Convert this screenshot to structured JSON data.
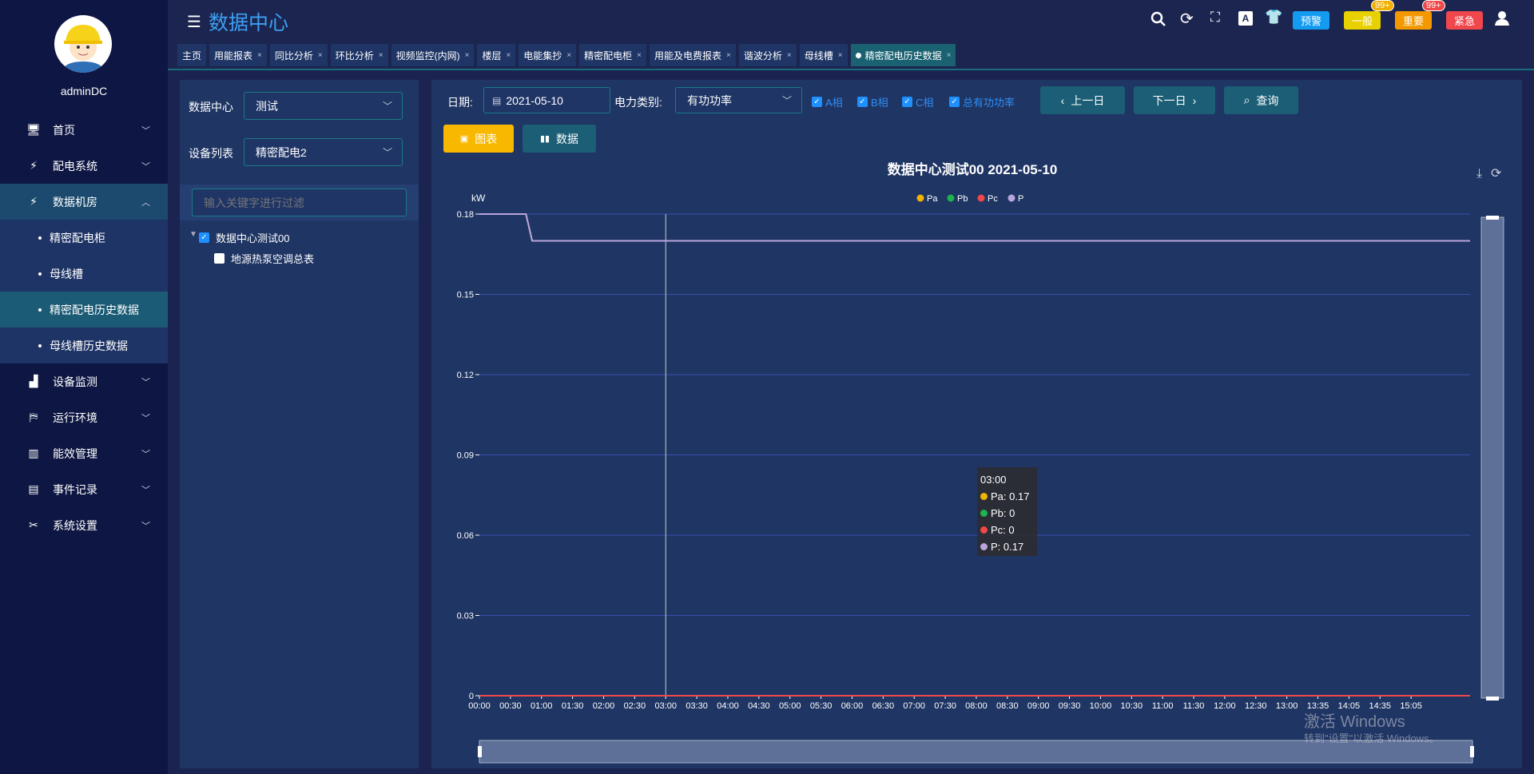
{
  "sidebar": {
    "username": "adminDC",
    "items": [
      {
        "label": "首页",
        "icon": "monitor-icon",
        "chev": "﹀"
      },
      {
        "label": "配电系统",
        "icon": "power-icon",
        "chev": "﹀"
      },
      {
        "label": "数据机房",
        "icon": "power-icon",
        "chev": "︿"
      },
      {
        "label": "设备监测",
        "icon": "bar-chart-icon",
        "chev": "﹀"
      },
      {
        "label": "运行环境",
        "icon": "environment-icon",
        "chev": "﹀"
      },
      {
        "label": "能效管理",
        "icon": "factory-icon",
        "chev": "﹀"
      },
      {
        "label": "事件记录",
        "icon": "log-icon",
        "chev": "﹀"
      },
      {
        "label": "系统设置",
        "icon": "tools-icon",
        "chev": "﹀"
      }
    ],
    "subitems": [
      "精密配电柜",
      "母线槽",
      "精密配电历史数据",
      "母线槽历史数据"
    ],
    "active_sub": "精密配电历史数据"
  },
  "header": {
    "title": "数据中心",
    "buttons": {
      "warn": "预警",
      "normal": "一般",
      "important": "重要",
      "urgent": "紧急"
    },
    "badges": {
      "normal": "99+",
      "important": "99+"
    },
    "tabs": [
      "主页",
      "用能报表",
      "同比分析",
      "环比分析",
      "视频监控(内网)",
      "楼层",
      "电能集抄",
      "精密配电柜",
      "用能及电费报表",
      "谐波分析",
      "母线槽",
      "精密配电历史数据"
    ],
    "active_tab": "精密配电历史数据"
  },
  "left": {
    "dc_label": "数据中心",
    "dc_value": "测试",
    "dev_label": "设备列表",
    "dev_value": "精密配电2",
    "filter_placeholder": "输入关键字进行过滤",
    "tree": [
      {
        "label": "数据中心测试00",
        "checked": true
      },
      {
        "label": "地源热泵空调总表",
        "checked": false
      }
    ]
  },
  "filters": {
    "date_label": "日期:",
    "date": "2021-05-10",
    "type_label": "电力类别:",
    "type": "有功功率",
    "checks": [
      {
        "label": "A相",
        "checked": true
      },
      {
        "label": "B相",
        "checked": true
      },
      {
        "label": "C相",
        "checked": true
      },
      {
        "label": "总有功功率",
        "checked": true
      }
    ],
    "prev": "上一日",
    "next": "下一日",
    "query": "查询",
    "chart_btn": "图表",
    "data_btn": "数据"
  },
  "tooltip": {
    "time": "03:00",
    "rows": [
      "Pa: 0.17",
      "Pb: 0",
      "Pc: 0",
      "P: 0.17"
    ]
  },
  "watermark": {
    "line1": "激活 Windows",
    "line2": "转到\"设置\"以激活 Windows。"
  },
  "chart_data": {
    "type": "line",
    "title": "数据中心测试00  2021-05-10",
    "ylabel": "kW",
    "ylim": [
      0,
      0.18
    ],
    "yticks": [
      0,
      0.03,
      0.06,
      0.09,
      0.12,
      0.15,
      0.18
    ],
    "grid": true,
    "legend_position": "top-center",
    "x": [
      "00:00",
      "00:30",
      "01:00",
      "01:30",
      "02:00",
      "02:30",
      "03:00",
      "03:30",
      "04:00",
      "04:30",
      "05:00",
      "05:30",
      "06:00",
      "06:30",
      "07:00",
      "07:30",
      "08:00",
      "08:30",
      "09:00",
      "09:30",
      "10:00",
      "10:30",
      "11:00",
      "11:30",
      "12:00",
      "12:30",
      "13:00",
      "13:35",
      "14:05",
      "14:35",
      "15:05"
    ],
    "series": [
      {
        "name": "Pa",
        "color": "#f0b400",
        "values": [
          0.18,
          0.18,
          0.17,
          0.17,
          0.17,
          0.17,
          0.17,
          0.17,
          0.17,
          0.17,
          0.17,
          0.17,
          0.17,
          0.17,
          0.17,
          0.17,
          0.17,
          0.17,
          0.17,
          0.17,
          0.17,
          0.17,
          0.17,
          0.17,
          0.17,
          0.17,
          0.17,
          0.17,
          0.17,
          0.17,
          0.17
        ]
      },
      {
        "name": "Pb",
        "color": "#1db34f",
        "values": [
          0,
          0,
          0,
          0,
          0,
          0,
          0,
          0,
          0,
          0,
          0,
          0,
          0,
          0,
          0,
          0,
          0,
          0,
          0,
          0,
          0,
          0,
          0,
          0,
          0,
          0,
          0,
          0,
          0,
          0,
          0
        ]
      },
      {
        "name": "Pc",
        "color": "#f04848",
        "values": [
          0,
          0,
          0,
          0,
          0,
          0,
          0,
          0,
          0,
          0,
          0,
          0,
          0,
          0,
          0,
          0,
          0,
          0,
          0,
          0,
          0,
          0,
          0,
          0,
          0,
          0,
          0,
          0,
          0,
          0,
          0
        ]
      },
      {
        "name": "P",
        "color": "#b9a5dc",
        "values": [
          0.18,
          0.18,
          0.17,
          0.17,
          0.17,
          0.17,
          0.17,
          0.17,
          0.17,
          0.17,
          0.17,
          0.17,
          0.17,
          0.17,
          0.17,
          0.17,
          0.17,
          0.17,
          0.17,
          0.17,
          0.17,
          0.17,
          0.17,
          0.17,
          0.17,
          0.17,
          0.17,
          0.17,
          0.17,
          0.17,
          0.17
        ]
      }
    ],
    "crosshair": "03:00"
  }
}
